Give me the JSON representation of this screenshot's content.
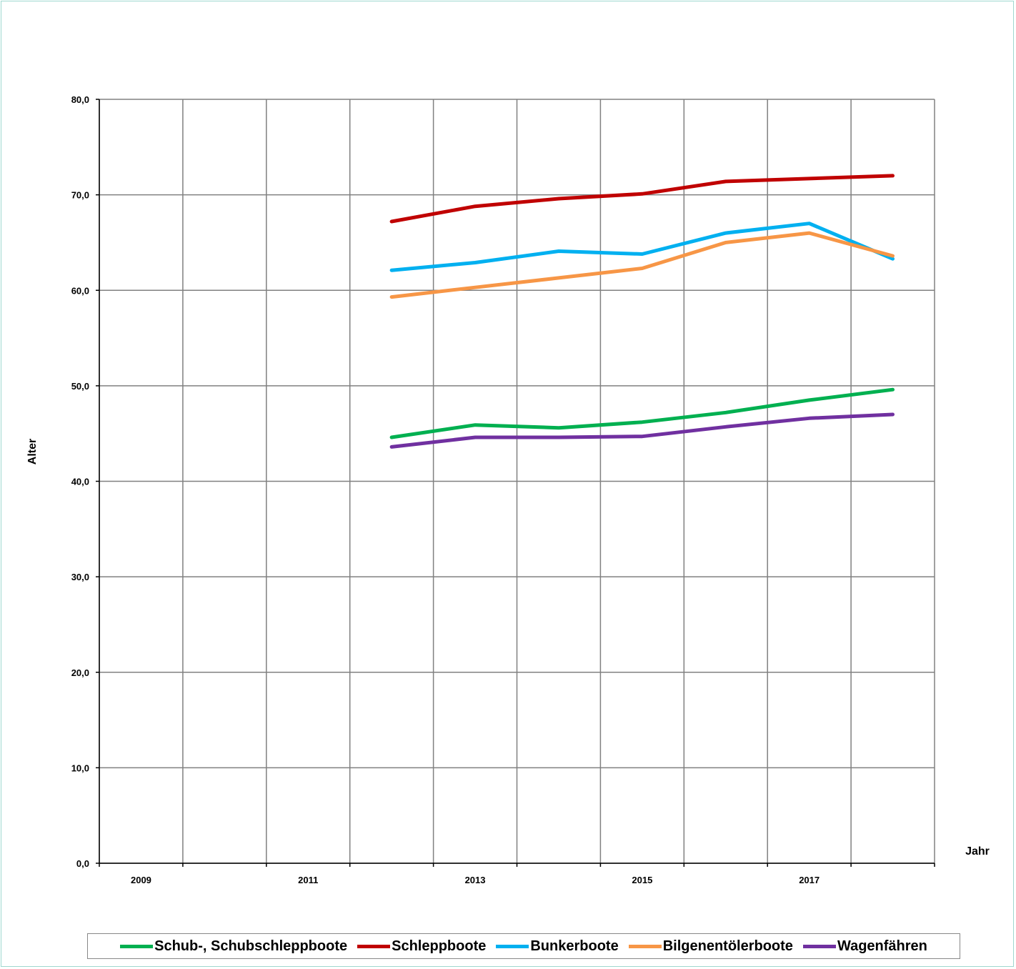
{
  "chart_data": {
    "type": "line",
    "title": "",
    "xlabel": "Jahr",
    "ylabel": "Alter",
    "ylim": [
      0,
      80
    ],
    "yticks": [
      "0,0",
      "10,0",
      "20,0",
      "30,0",
      "40,0",
      "50,0",
      "60,0",
      "70,0",
      "80,0"
    ],
    "xticks": [
      "2009",
      "2011",
      "2013",
      "2015",
      "2017"
    ],
    "xlim": [
      2008.5,
      2018.5
    ],
    "grid": true,
    "legend_position": "bottom",
    "x": [
      2012,
      2013,
      2014,
      2015,
      2016,
      2017,
      2018
    ],
    "series": [
      {
        "name": "Schub-, Schubschleppboote",
        "color": "#00b050",
        "values": [
          44.6,
          45.9,
          45.6,
          46.2,
          47.2,
          48.5,
          49.6
        ]
      },
      {
        "name": "Schleppboote",
        "color": "#c00000",
        "values": [
          67.2,
          68.8,
          69.6,
          70.1,
          71.4,
          71.7,
          72.0
        ]
      },
      {
        "name": "Bunkerboote",
        "color": "#00b0f0",
        "values": [
          62.1,
          62.9,
          64.1,
          63.8,
          66.0,
          67.0,
          63.3
        ]
      },
      {
        "name": "Bilgenentölerboote",
        "color": "#f79646",
        "values": [
          59.3,
          60.3,
          61.3,
          62.3,
          65.0,
          66.0,
          63.6
        ]
      },
      {
        "name": "Wagenfähren",
        "color": "#7030a0",
        "values": [
          43.6,
          44.6,
          44.6,
          44.7,
          45.7,
          46.6,
          47.0
        ]
      }
    ]
  }
}
